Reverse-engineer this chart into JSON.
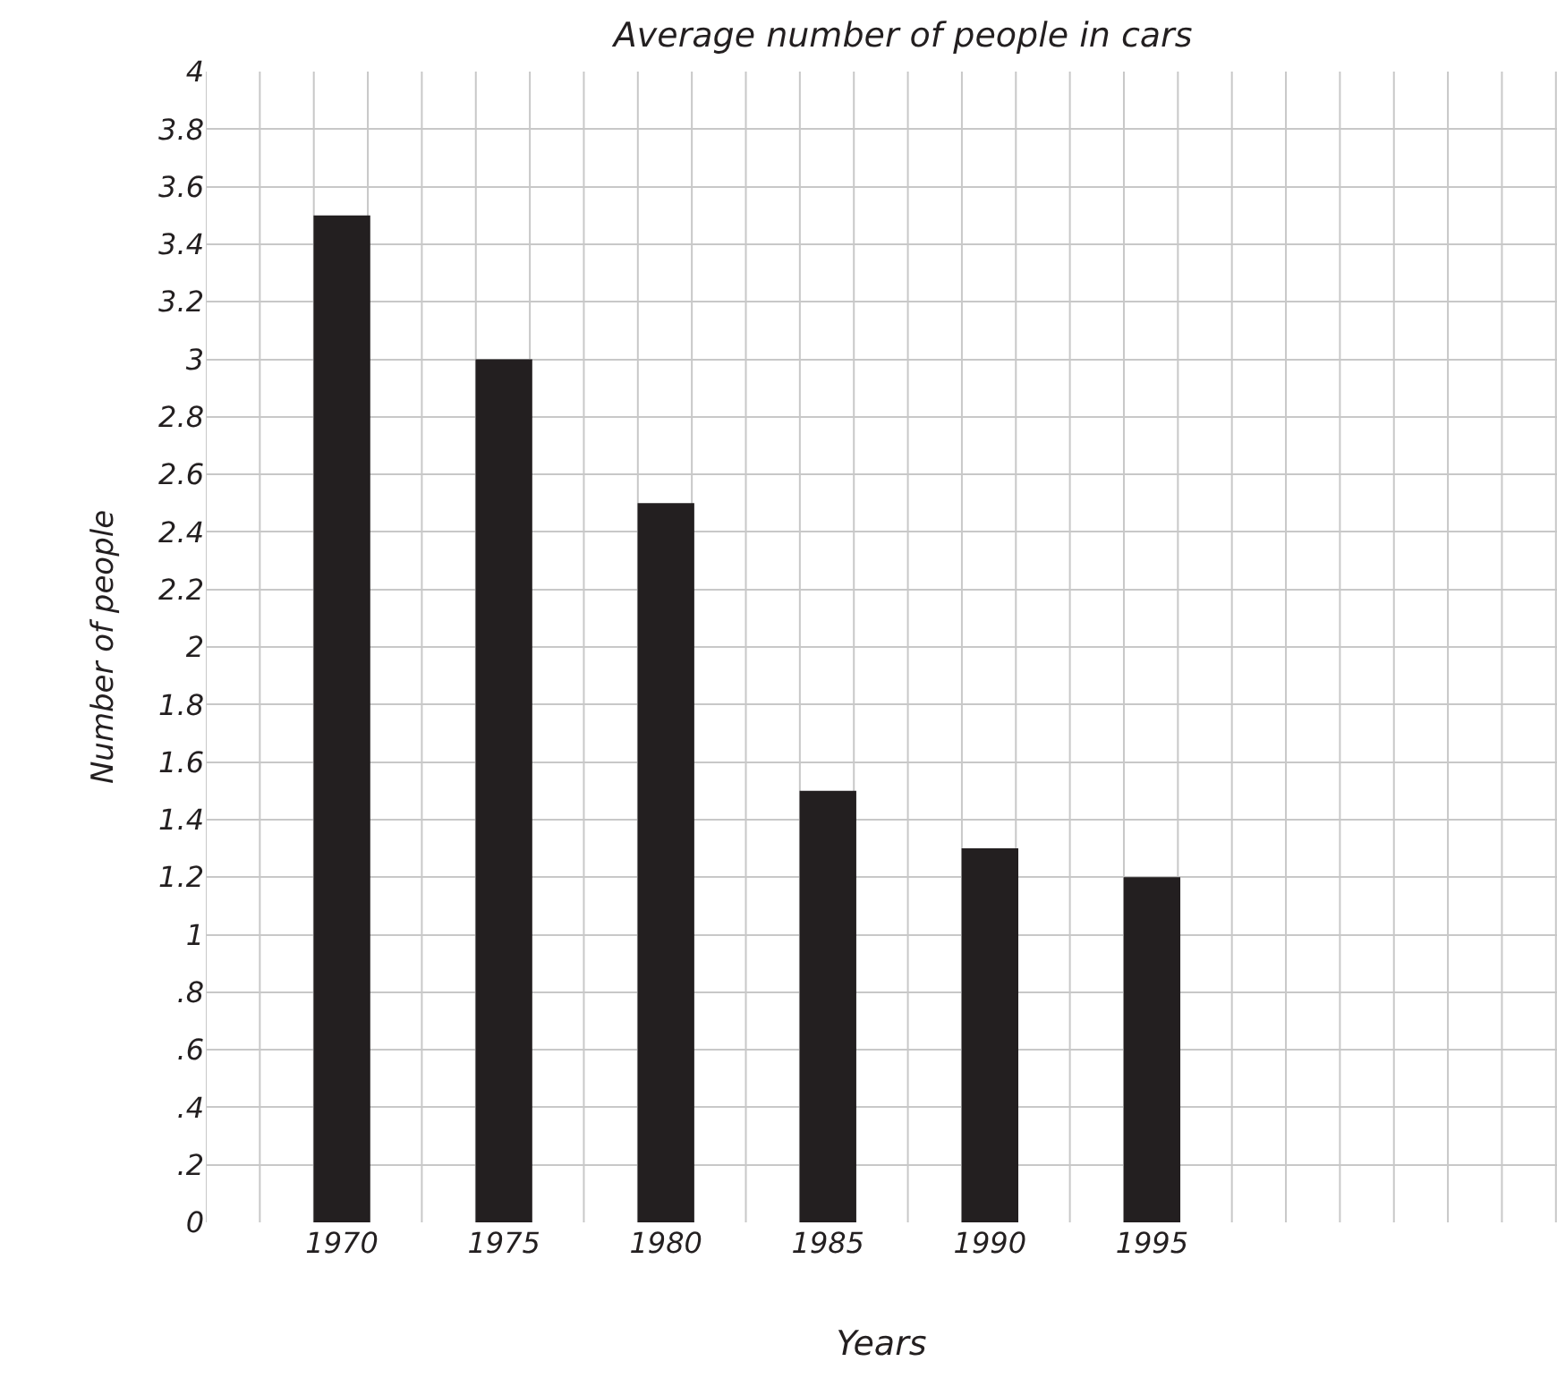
{
  "chart_data": {
    "type": "bar",
    "title": "Average number of people in cars",
    "xlabel": "Years",
    "ylabel": "Number of people",
    "categories": [
      "1970",
      "1975",
      "1980",
      "1985",
      "1990",
      "1995"
    ],
    "values": [
      3.5,
      3.0,
      2.5,
      1.5,
      1.3,
      1.2
    ],
    "color": "#231f20",
    "ylim": [
      0,
      4
    ],
    "yticks": [
      0,
      {
        "value": 0.2,
        "label": ".2"
      },
      {
        "value": 0.4,
        "label": ".4"
      },
      {
        "value": 0.6,
        "label": ".6"
      },
      {
        "value": 0.8,
        "label": ".8"
      },
      1,
      1.2,
      1.4,
      1.6,
      1.8,
      2,
      2.2,
      2.4,
      2.6,
      2.8,
      3,
      3.2,
      3.4,
      3.6,
      3.8,
      4
    ],
    "grid": true
  }
}
